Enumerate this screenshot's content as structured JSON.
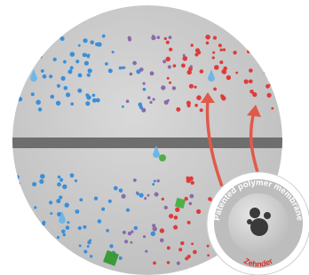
{
  "badge": {
    "text": "Patented polymer membrane",
    "brand": "Zehnder"
  }
}
